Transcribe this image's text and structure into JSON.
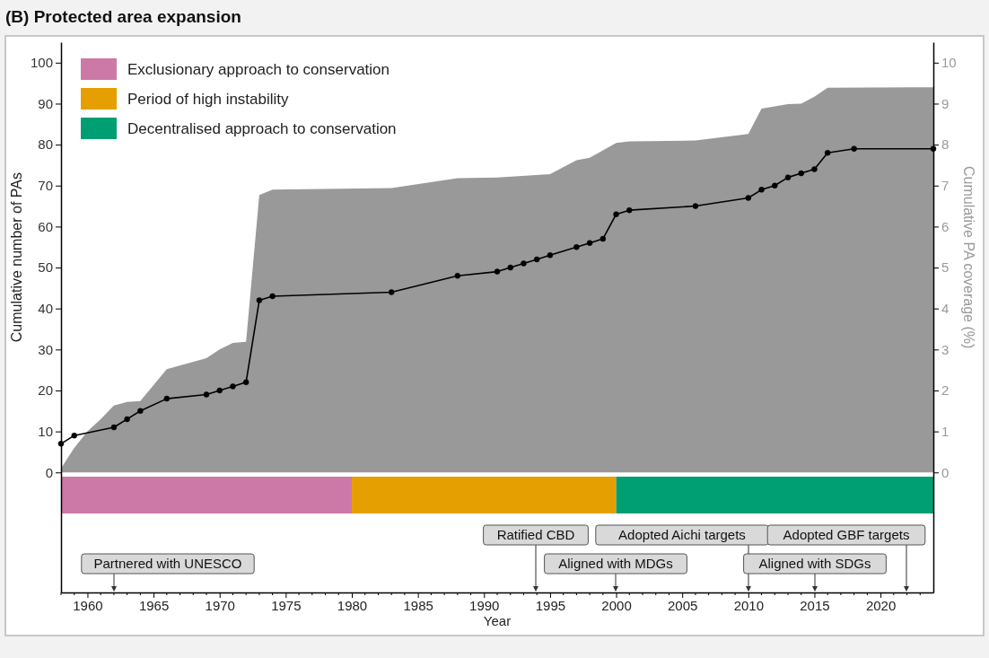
{
  "chart_data": {
    "type": "area",
    "title": "(B) Protected area expansion",
    "xlabel": "Year",
    "ylabel": "Cumulative number of PAs",
    "y2label": "Cumulative PA coverage (%)",
    "xlim": [
      1958,
      2024
    ],
    "ylim": [
      -29.3,
      105
    ],
    "y2lim": [
      -2.93,
      10.5
    ],
    "xticks": [
      {
        "value": 1958,
        "label": null
      },
      {
        "value": 1959,
        "label": null
      },
      1960,
      {
        "value": 1961,
        "label": null
      },
      {
        "value": 1962,
        "label": null
      },
      {
        "value": 1963,
        "label": null
      },
      {
        "value": 1964,
        "label": null
      },
      1965,
      {
        "value": 1966,
        "label": null
      },
      {
        "value": 1967,
        "label": null
      },
      {
        "value": 1968,
        "label": null
      },
      {
        "value": 1969,
        "label": null
      },
      1970,
      {
        "value": 1971,
        "label": null
      },
      {
        "value": 1972,
        "label": null
      },
      {
        "value": 1973,
        "label": null
      },
      {
        "value": 1974,
        "label": null
      },
      1975,
      {
        "value": 1976,
        "label": null
      },
      {
        "value": 1977,
        "label": null
      },
      {
        "value": 1978,
        "label": null
      },
      {
        "value": 1979,
        "label": null
      },
      1980,
      {
        "value": 1981,
        "label": null
      },
      {
        "value": 1982,
        "label": null
      },
      {
        "value": 1983,
        "label": null
      },
      {
        "value": 1984,
        "label": null
      },
      1985,
      {
        "value": 1986,
        "label": null
      },
      {
        "value": 1987,
        "label": null
      },
      {
        "value": 1988,
        "label": null
      },
      {
        "value": 1989,
        "label": null
      },
      1990,
      {
        "value": 1991,
        "label": null
      },
      {
        "value": 1992,
        "label": null
      },
      {
        "value": 1993,
        "label": null
      },
      {
        "value": 1994,
        "label": null
      },
      1995,
      {
        "value": 1996,
        "label": null
      },
      {
        "value": 1997,
        "label": null
      },
      {
        "value": 1998,
        "label": null
      },
      {
        "value": 1999,
        "label": null
      },
      2000,
      {
        "value": 2001,
        "label": null
      },
      {
        "value": 2002,
        "label": null
      },
      {
        "value": 2003,
        "label": null
      },
      {
        "value": 2004,
        "label": null
      },
      2005,
      {
        "value": 2006,
        "label": null
      },
      {
        "value": 2007,
        "label": null
      },
      {
        "value": 2008,
        "label": null
      },
      {
        "value": 2009,
        "label": null
      },
      2010,
      {
        "value": 2011,
        "label": null
      },
      {
        "value": 2012,
        "label": null
      },
      {
        "value": 2013,
        "label": null
      },
      {
        "value": 2014,
        "label": null
      },
      2015,
      {
        "value": 2016,
        "label": null
      },
      {
        "value": 2017,
        "label": null
      },
      {
        "value": 2018,
        "label": null
      },
      {
        "value": 2019,
        "label": null
      },
      2020,
      {
        "value": 2021,
        "label": null
      },
      {
        "value": 2022,
        "label": null
      },
      {
        "value": 2023,
        "label": null
      }
    ],
    "yticks": [
      0,
      10,
      20,
      30,
      40,
      50,
      60,
      70,
      80,
      90,
      100
    ],
    "y2ticks": [
      0,
      1,
      2,
      3,
      4,
      5,
      6,
      7,
      8,
      9,
      10
    ],
    "series": [
      {
        "axis": "y2",
        "color": "#999999",
        "x": [
          1958,
          1959,
          1960,
          1961,
          1962,
          1963,
          1964,
          1966,
          1969,
          1970,
          1971,
          1972,
          1973,
          1974,
          1983,
          1988,
          1991,
          1995,
          1997,
          1998,
          2000,
          2001,
          2006,
          2010,
          2011,
          2013,
          2014,
          2015,
          2016,
          2024
        ],
        "values": [
          0.1,
          0.6,
          1.0,
          1.3,
          1.63,
          1.72,
          1.74,
          2.52,
          2.79,
          3.0,
          3.16,
          3.19,
          6.77,
          6.9,
          6.94,
          7.18,
          7.2,
          7.28,
          7.62,
          7.68,
          8.04,
          8.08,
          8.1,
          8.26,
          8.88,
          8.99,
          9.0,
          9.17,
          9.39,
          9.4
        ]
      },
      {
        "type": "line",
        "color": "#000000",
        "marker": "circle",
        "x": [
          1958,
          1959,
          1962,
          1963,
          1964,
          1966,
          1969,
          1970,
          1971,
          1972,
          1973,
          1974,
          1983,
          1988,
          1991,
          1992,
          1993,
          1994,
          1995,
          1997,
          1998,
          1999,
          2000,
          2001,
          2006,
          2010,
          2011,
          2012,
          2013,
          2014,
          2015,
          2016,
          2018,
          2024
        ],
        "values": [
          7,
          9,
          11,
          13,
          15,
          18,
          19,
          20,
          21,
          22,
          42,
          43,
          44,
          48,
          49,
          50,
          51,
          52,
          53,
          55,
          56,
          57,
          63,
          64,
          65,
          67,
          69,
          70,
          72,
          73,
          74,
          78,
          79,
          79
        ]
      }
    ],
    "bands": [
      {
        "axis": "x",
        "from": 1958,
        "to": 1980,
        "label": "Exclusionary approach to conservation",
        "color": "#cc79a7"
      },
      {
        "axis": "x",
        "from": 1980,
        "to": 2000,
        "label": "Period of high instability",
        "color": "#e69f00"
      },
      {
        "axis": "x",
        "from": 2000,
        "to": 2024,
        "label": "Decentralised approach to conservation",
        "color": "#009e73"
      }
    ],
    "annotations": [
      "Partnered with UNESCO",
      "Ratified CBD",
      "Aligned with MDGs",
      "Adopted Aichi targets",
      "Aligned with SDGs",
      "Adopted GBF targets"
    ],
    "legend": "top left",
    "grid": false
  }
}
